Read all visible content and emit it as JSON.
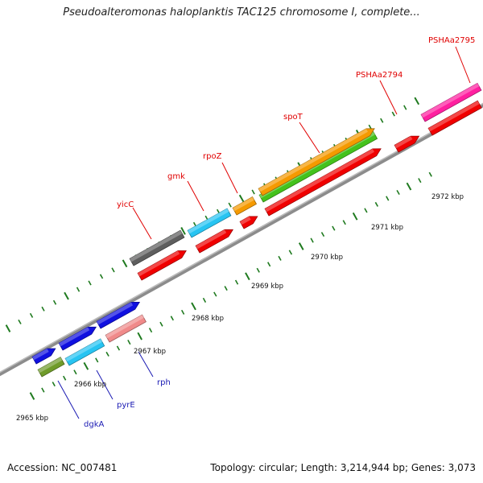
{
  "title": "Pseudoalteromonas haloplanktis TAC125 chromosome I, complete...",
  "footer": {
    "accession": "Accession: NC_007481",
    "summary": "Topology: circular; Length: 3,214,944 bp; Genes: 3,073"
  },
  "colors": {
    "backbone": "#8c8c8c",
    "tick": "#1f7a1f",
    "label_red": "#e00000",
    "label_blue": "#1a1ab3"
  },
  "scale_labels": [
    "2965 kbp",
    "2966 kbp",
    "2967 kbp",
    "2968 kbp",
    "2969 kbp",
    "2970 kbp",
    "2971 kbp",
    "2972 kbp"
  ],
  "gene_labels": [
    {
      "name": "dgkA",
      "color": "#1a1ab3"
    },
    {
      "name": "pyrE",
      "color": "#1a1ab3"
    },
    {
      "name": "rph",
      "color": "#1a1ab3"
    },
    {
      "name": "yicC",
      "color": "#e00000"
    },
    {
      "name": "gmk",
      "color": "#e00000"
    },
    {
      "name": "rpoZ",
      "color": "#e00000"
    },
    {
      "name": "spoT",
      "color": "#e00000"
    },
    {
      "name": "PSHAa2794",
      "color": "#e00000"
    },
    {
      "name": "PSHAa2795",
      "color": "#e00000"
    }
  ],
  "features": [
    {
      "name": "cyan-feature-edge",
      "color": "#27c4f2"
    },
    {
      "name": "olive-feature",
      "color": "#6f9b2a"
    },
    {
      "name": "blue-feature-1",
      "color": "#1010e0"
    },
    {
      "name": "cyan-feature-pyrE",
      "color": "#27c4f2"
    },
    {
      "name": "blue-feature-2",
      "color": "#1010e0"
    },
    {
      "name": "pink-feature-rph",
      "color": "#f08a8a"
    },
    {
      "name": "blue-feature-3",
      "color": "#1010e0"
    },
    {
      "name": "red-feature-1",
      "color": "#f00000"
    },
    {
      "name": "gray-feature-yicC",
      "color": "#5e5e5e"
    },
    {
      "name": "red-feature-2",
      "color": "#f00000"
    },
    {
      "name": "cyan-feature-gmk",
      "color": "#27c4f2"
    },
    {
      "name": "red-feature-3",
      "color": "#f00000"
    },
    {
      "name": "orange-feature-rpoZ",
      "color": "#f59a00"
    },
    {
      "name": "red-feature-spoT",
      "color": "#f00000"
    },
    {
      "name": "green-feature-spoT",
      "color": "#44c21c"
    },
    {
      "name": "orange-feature-spoT",
      "color": "#f59a00"
    },
    {
      "name": "red-feature-2794",
      "color": "#f00000"
    },
    {
      "name": "red-feature-2795",
      "color": "#f00000"
    },
    {
      "name": "magenta-feature-2795",
      "color": "#ff1fa0"
    }
  ]
}
